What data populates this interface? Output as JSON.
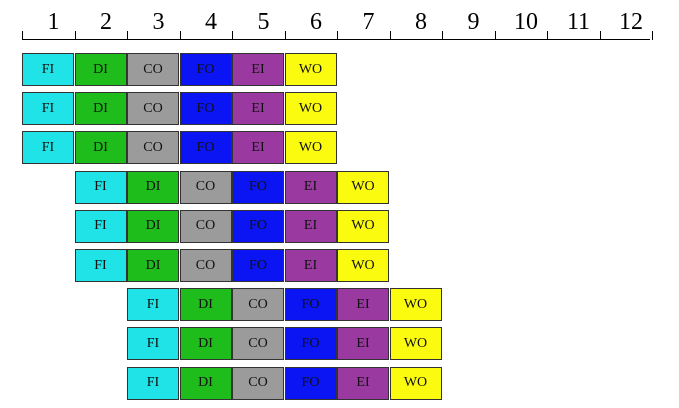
{
  "ruler": {
    "labels": [
      "1",
      "2",
      "3",
      "4",
      "5",
      "6",
      "7",
      "8",
      "9",
      "10",
      "11",
      "12"
    ]
  },
  "stages": [
    {
      "key": "fi",
      "label": "FI",
      "color": "#1fe3e6"
    },
    {
      "key": "di",
      "label": "DI",
      "color": "#1fbd1c"
    },
    {
      "key": "co",
      "label": "CO",
      "color": "#9b9b9b"
    },
    {
      "key": "fo",
      "label": "FO",
      "color": "#0b14f3"
    },
    {
      "key": "ei",
      "label": "EI",
      "color": "#9a3aa1"
    },
    {
      "key": "wo",
      "label": "WO",
      "color": "#fbfb10"
    }
  ],
  "instructions": [
    {
      "start_cycle": 1
    },
    {
      "start_cycle": 1
    },
    {
      "start_cycle": 1
    },
    {
      "start_cycle": 2
    },
    {
      "start_cycle": 2
    },
    {
      "start_cycle": 2
    },
    {
      "start_cycle": 3
    },
    {
      "start_cycle": 3
    },
    {
      "start_cycle": 3
    }
  ]
}
